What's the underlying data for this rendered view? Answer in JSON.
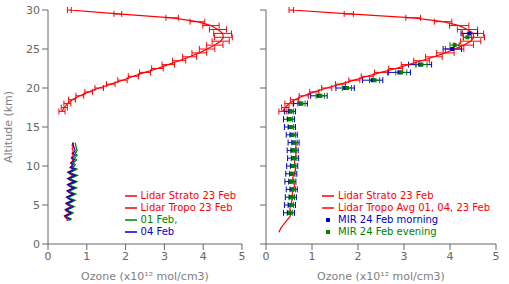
{
  "chart_data": [
    {
      "type": "line",
      "xlabel": "Ozone (x10¹² mol/cm3)",
      "ylabel": "Altitude (km)",
      "xlim": [
        0,
        5
      ],
      "ylim": [
        0,
        30
      ],
      "xticks": [
        0,
        1,
        2,
        3,
        4,
        5
      ],
      "yticks": [
        0,
        5,
        10,
        15,
        20,
        25,
        30
      ],
      "grid": false,
      "legend": "lower right",
      "series": [
        {
          "name": "Lidar Strato 23 Feb",
          "color": "#ff0000",
          "type": "line",
          "x": [
            0.36,
            0.42,
            0.5,
            0.62,
            0.82,
            1.05,
            1.32,
            1.62,
            1.92,
            2.2,
            2.5,
            2.82,
            3.1,
            3.38,
            3.65,
            3.9,
            4.1,
            4.3,
            4.45,
            4.52,
            4.5,
            4.38,
            4.2,
            3.85,
            3.2,
            1.8,
            0.55
          ],
          "y": [
            17.0,
            17.5,
            18.0,
            18.5,
            19.0,
            19.5,
            20.0,
            20.5,
            21.0,
            21.5,
            22.0,
            22.5,
            23.0,
            23.5,
            24.0,
            24.5,
            25.0,
            25.5,
            26.0,
            26.5,
            27.0,
            27.5,
            28.0,
            28.5,
            29.0,
            29.5,
            30.0
          ],
          "xerr": [
            0.08,
            0.08,
            0.09,
            0.09,
            0.1,
            0.1,
            0.11,
            0.11,
            0.12,
            0.13,
            0.14,
            0.15,
            0.16,
            0.17,
            0.18,
            0.19,
            0.2,
            0.21,
            0.22,
            0.23,
            0.23,
            0.22,
            0.21,
            0.19,
            0.16,
            0.1,
            0.05
          ]
        },
        {
          "name": "Lidar Tropo 23 Feb",
          "color": "#ff0000",
          "type": "line",
          "x": [
            0.48,
            0.5,
            0.45,
            0.42,
            0.5,
            0.55,
            0.48,
            0.44,
            0.52,
            0.58,
            0.52,
            0.46,
            0.54,
            0.6,
            0.53,
            0.48,
            0.56,
            0.62,
            0.54,
            0.49,
            0.57,
            0.63,
            0.55,
            0.5,
            0.58,
            0.64,
            0.56,
            0.5,
            0.58,
            0.64,
            0.56,
            0.51,
            0.59,
            0.65,
            0.57,
            0.6,
            0.62,
            0.58,
            0.62,
            0.65,
            0.6,
            0.62,
            0.65,
            0.62,
            0.64,
            0.65,
            0.62,
            0.65,
            0.62,
            0.63,
            0.65
          ],
          "y": [
            3.0,
            3.2,
            3.4,
            3.6,
            3.8,
            4.0,
            4.2,
            4.4,
            4.6,
            4.8,
            5.0,
            5.2,
            5.4,
            5.6,
            5.8,
            6.0,
            6.2,
            6.4,
            6.6,
            6.8,
            7.0,
            7.2,
            7.4,
            7.6,
            7.8,
            8.0,
            8.2,
            8.4,
            8.6,
            8.8,
            9.0,
            9.2,
            9.4,
            9.6,
            9.8,
            10.0,
            10.2,
            10.4,
            10.6,
            10.8,
            11.0,
            11.2,
            11.4,
            11.6,
            11.8,
            12.0,
            12.2,
            12.4,
            12.6,
            12.8,
            13.0
          ]
        },
        {
          "name": "01 Feb,",
          "color": "#008000",
          "type": "line",
          "x": [
            0.55,
            0.6,
            0.52,
            0.48,
            0.58,
            0.65,
            0.55,
            0.5,
            0.6,
            0.68,
            0.58,
            0.52,
            0.62,
            0.7,
            0.6,
            0.53,
            0.63,
            0.72,
            0.62,
            0.55,
            0.65,
            0.74,
            0.63,
            0.56,
            0.67,
            0.75,
            0.64,
            0.57,
            0.67,
            0.76,
            0.64,
            0.57,
            0.67,
            0.75,
            0.63,
            0.68,
            0.7,
            0.65,
            0.7,
            0.74,
            0.68,
            0.72,
            0.75,
            0.7,
            0.73,
            0.75,
            0.72,
            0.7
          ],
          "y": [
            3.0,
            3.2,
            3.4,
            3.6,
            3.8,
            4.0,
            4.2,
            4.4,
            4.6,
            4.8,
            5.0,
            5.2,
            5.4,
            5.6,
            5.8,
            6.0,
            6.2,
            6.4,
            6.6,
            6.8,
            7.0,
            7.2,
            7.4,
            7.6,
            7.8,
            8.0,
            8.2,
            8.4,
            8.6,
            8.8,
            9.0,
            9.2,
            9.4,
            9.6,
            9.8,
            10.0,
            10.2,
            10.4,
            10.6,
            10.8,
            11.0,
            11.2,
            11.4,
            11.6,
            11.8,
            12.0,
            12.5,
            13.0
          ]
        },
        {
          "name": "04 Feb",
          "color": "#0000cd",
          "type": "line",
          "x": [
            0.5,
            0.56,
            0.48,
            0.44,
            0.54,
            0.6,
            0.51,
            0.46,
            0.55,
            0.63,
            0.53,
            0.47,
            0.57,
            0.64,
            0.54,
            0.48,
            0.58,
            0.66,
            0.56,
            0.5,
            0.6,
            0.68,
            0.57,
            0.51,
            0.61,
            0.7,
            0.59,
            0.52,
            0.62,
            0.7,
            0.59,
            0.52,
            0.62,
            0.7,
            0.58,
            0.63,
            0.65,
            0.6,
            0.65,
            0.68,
            0.62,
            0.66,
            0.7,
            0.64,
            0.68,
            0.7,
            0.66,
            0.64
          ],
          "y": [
            3.0,
            3.2,
            3.4,
            3.6,
            3.8,
            4.0,
            4.2,
            4.4,
            4.6,
            4.8,
            5.0,
            5.2,
            5.4,
            5.6,
            5.8,
            6.0,
            6.2,
            6.4,
            6.6,
            6.8,
            7.0,
            7.2,
            7.4,
            7.6,
            7.8,
            8.0,
            8.2,
            8.4,
            8.6,
            8.8,
            9.0,
            9.2,
            9.4,
            9.6,
            9.8,
            10.0,
            10.2,
            10.4,
            10.6,
            10.8,
            11.0,
            11.2,
            11.4,
            11.6,
            11.8,
            12.0,
            12.5,
            13.0
          ]
        }
      ]
    },
    {
      "type": "line",
      "xlabel": "Ozone (x10¹² mol/cm3)",
      "xlim": [
        0,
        5
      ],
      "ylim": [
        0,
        30
      ],
      "xticks": [
        0,
        1,
        2,
        3,
        4,
        5
      ],
      "yticks": [
        0,
        5,
        10,
        15,
        20,
        25,
        30
      ],
      "grid": false,
      "legend": "lower right",
      "tick_labels": "x",
      "series": [
        {
          "name": "Lidar Strato 23 Feb",
          "color": "#ff0000",
          "type": "line",
          "x": [
            0.36,
            0.42,
            0.5,
            0.62,
            0.82,
            1.05,
            1.32,
            1.62,
            1.92,
            2.2,
            2.5,
            2.82,
            3.1,
            3.38,
            3.65,
            3.9,
            4.1,
            4.3,
            4.45,
            4.52,
            4.5,
            4.38,
            4.2,
            3.85,
            3.2,
            1.8,
            0.55
          ],
          "y": [
            17.0,
            17.5,
            18.0,
            18.5,
            19.0,
            19.5,
            20.0,
            20.5,
            21.0,
            21.5,
            22.0,
            22.5,
            23.0,
            23.5,
            24.0,
            24.5,
            25.0,
            25.5,
            26.0,
            26.5,
            27.0,
            27.5,
            28.0,
            28.5,
            29.0,
            29.5,
            30.0
          ],
          "xerr": [
            0.08,
            0.08,
            0.09,
            0.09,
            0.1,
            0.1,
            0.11,
            0.11,
            0.12,
            0.13,
            0.14,
            0.15,
            0.16,
            0.17,
            0.18,
            0.19,
            0.2,
            0.21,
            0.22,
            0.23,
            0.23,
            0.22,
            0.21,
            0.19,
            0.16,
            0.1,
            0.05
          ]
        },
        {
          "name": "Lidar Tropo Avg 01, 04, 23 Feb",
          "color": "#ff0000",
          "type": "line",
          "x": [
            0.28,
            0.32,
            0.38,
            0.45,
            0.52,
            0.55,
            0.52,
            0.54,
            0.56,
            0.58,
            0.57,
            0.6,
            0.62,
            0.6,
            0.58,
            0.62,
            0.64,
            0.63,
            0.62,
            0.64,
            0.65,
            0.64,
            0.65,
            0.65
          ],
          "y": [
            1.5,
            2.0,
            2.5,
            3.0,
            3.5,
            4.0,
            4.5,
            5.0,
            5.5,
            6.0,
            6.5,
            7.0,
            7.5,
            8.0,
            8.5,
            9.0,
            9.5,
            10.0,
            10.5,
            11.0,
            11.5,
            12.0,
            12.5,
            13.0
          ]
        },
        {
          "name": "MIR 24 Feb morning",
          "color": "#0000cd",
          "type": "scatter",
          "marker": "square",
          "x": [
            0.5,
            0.52,
            0.54,
            0.56,
            0.53,
            0.55,
            0.57,
            0.59,
            0.58,
            0.6,
            0.56,
            0.52,
            0.5,
            0.52,
            0.75,
            1.15,
            1.72,
            2.32,
            2.9,
            3.35,
            4.05,
            4.42
          ],
          "y": [
            4.0,
            5.0,
            6.0,
            7.0,
            8.0,
            9.0,
            10.0,
            11.0,
            12.0,
            13.0,
            14.0,
            15.0,
            16.0,
            17.0,
            18.0,
            19.0,
            20.0,
            21.0,
            22.0,
            23.0,
            25.0,
            27.0
          ],
          "xerr": [
            0.12,
            0.12,
            0.12,
            0.12,
            0.12,
            0.12,
            0.12,
            0.12,
            0.12,
            0.12,
            0.12,
            0.12,
            0.12,
            0.12,
            0.15,
            0.18,
            0.2,
            0.22,
            0.24,
            0.25,
            0.2,
            0.18
          ]
        },
        {
          "name": "MIR 24 Feb evening",
          "color": "#008000",
          "type": "scatter",
          "marker": "square",
          "x": [
            0.52,
            0.54,
            0.56,
            0.58,
            0.55,
            0.57,
            0.59,
            0.61,
            0.6,
            0.62,
            0.58,
            0.54,
            0.52,
            0.54,
            0.77,
            1.18,
            1.76,
            2.36,
            2.94,
            3.38,
            4.1,
            4.38
          ],
          "y": [
            4.0,
            5.0,
            6.0,
            7.0,
            8.0,
            9.0,
            10.0,
            11.0,
            12.0,
            13.0,
            14.0,
            15.0,
            16.0,
            17.0,
            18.0,
            19.0,
            20.0,
            21.0,
            22.0,
            23.0,
            25.5,
            26.5
          ],
          "xerr": [
            0.06,
            0.06,
            0.06,
            0.06,
            0.06,
            0.06,
            0.06,
            0.06,
            0.06,
            0.06,
            0.06,
            0.06,
            0.06,
            0.06,
            0.08,
            0.09,
            0.1,
            0.11,
            0.12,
            0.12,
            0.1,
            0.09
          ]
        }
      ]
    }
  ]
}
